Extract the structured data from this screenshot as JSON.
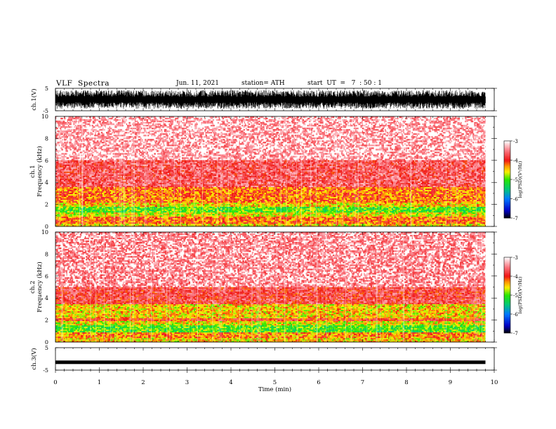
{
  "header": {
    "title": "VLF  Spectra",
    "date": "Jun. 11, 2021",
    "station": "station= ATH",
    "start": "start  UT  =   7  : 50 : 1"
  },
  "chart_data": [
    {
      "type": "line",
      "panel": "ch1-waveform",
      "ylabel": "ch.1(V)",
      "ylim": [
        -5,
        5
      ],
      "y_ticks": [
        "5",
        "-5"
      ],
      "x_unit": "min",
      "xlim": [
        0,
        10
      ],
      "data_end_x": 9.8,
      "signal_range_y": [
        -4.2,
        4.2
      ],
      "color": "#000000"
    },
    {
      "type": "heatmap",
      "panel": "ch1-spectrogram",
      "ylabel": "ch.1\nFrequency  (kHz)",
      "ylim": [
        0,
        10
      ],
      "y_ticks": [
        "0",
        "2",
        "4",
        "6",
        "8",
        "10"
      ],
      "xlim": [
        0,
        10
      ],
      "data_end_x": 9.8,
      "colorbar": {
        "label": "log(PSD)(V²/Hz)",
        "range": [
          -7,
          -3
        ],
        "ticks": [
          "-3",
          "-4",
          "-5",
          "-6",
          "-7"
        ]
      },
      "bands": [
        {
          "f": [
            0.0,
            0.3
          ],
          "level": -4.5,
          "desc": "yellow base"
        },
        {
          "f": [
            0.3,
            0.9
          ],
          "level": -4.2,
          "desc": "red/orange lines"
        },
        {
          "f": [
            0.9,
            1.3
          ],
          "level": -4.6,
          "desc": "yellow"
        },
        {
          "f": [
            1.3,
            1.8
          ],
          "level": -5.0,
          "desc": "green"
        },
        {
          "f": [
            1.8,
            2.2
          ],
          "level": -4.5,
          "desc": "yellow"
        },
        {
          "f": [
            2.2,
            3.6
          ],
          "level": -4.2,
          "desc": "orange/red"
        },
        {
          "f": [
            3.6,
            6.0
          ],
          "level": -3.7,
          "desc": "red"
        },
        {
          "f": [
            6.0,
            10.0
          ],
          "level": -3.3,
          "desc": "light red"
        }
      ]
    },
    {
      "type": "heatmap",
      "panel": "ch2-spectrogram",
      "ylabel": "ch.2\nFrequency  (kHz)",
      "ylim": [
        0,
        10
      ],
      "y_ticks": [
        "0",
        "2",
        "4",
        "6",
        "8",
        "10"
      ],
      "xlim": [
        0,
        10
      ],
      "data_end_x": 9.8,
      "colorbar": {
        "label": "log(PSD)(V²/Hz)",
        "range": [
          -7,
          -3
        ],
        "ticks": [
          "-3",
          "-4",
          "-5",
          "-6",
          "-7"
        ]
      },
      "bands": [
        {
          "f": [
            0.0,
            0.4
          ],
          "level": -4.5,
          "desc": "yellow/orange"
        },
        {
          "f": [
            0.4,
            0.9
          ],
          "level": -4.3,
          "desc": "orange"
        },
        {
          "f": [
            0.9,
            1.6
          ],
          "level": -5.0,
          "desc": "green"
        },
        {
          "f": [
            1.6,
            1.9
          ],
          "level": -4.6,
          "desc": "yellow"
        },
        {
          "f": [
            1.9,
            2.2
          ],
          "level": -4.0,
          "desc": "red line"
        },
        {
          "f": [
            2.2,
            3.4
          ],
          "level": -4.5,
          "desc": "yellow"
        },
        {
          "f": [
            3.4,
            5.0
          ],
          "level": -3.8,
          "desc": "red"
        },
        {
          "f": [
            5.0,
            10.0
          ],
          "level": -3.4,
          "desc": "light red"
        }
      ]
    },
    {
      "type": "line",
      "panel": "ch3-waveform",
      "ylabel": "ch.3(V)",
      "ylim": [
        -5,
        5
      ],
      "y_ticks": [
        "5",
        "-5"
      ],
      "xlim": [
        0,
        10
      ],
      "data_end_x": 9.8,
      "signal_level_y": -1.5,
      "signal_range_y": [
        -1.8,
        -1.2
      ],
      "color": "#000000"
    }
  ],
  "x_axis": {
    "label": "Time  (min)",
    "ticks": [
      "0",
      "1",
      "2",
      "3",
      "4",
      "5",
      "6",
      "7",
      "8",
      "9",
      "10"
    ]
  }
}
